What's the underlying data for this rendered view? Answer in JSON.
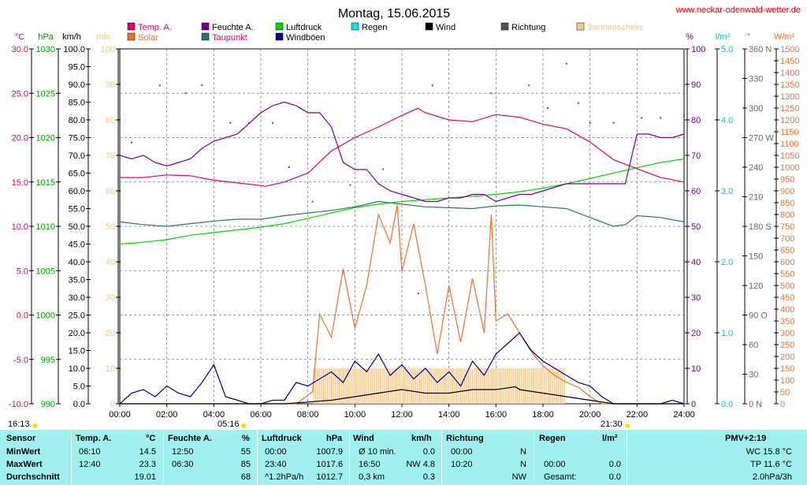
{
  "header": {
    "title": "Montag, 15.06.2015",
    "website": "www.neckar-odenwald-wetter.de"
  },
  "colors": {
    "temp": "#e0006e",
    "humidity": "#7a0090",
    "pressure": "#00d800",
    "rain": "#00e8e8",
    "wind": "#000000",
    "direction": "#555555",
    "sunshine": "#f5c884",
    "solar": "#f07030",
    "dewpoint": "#307070",
    "gust": "#000090",
    "degC_axis": "#e0006e",
    "hpa_axis": "#00a000",
    "min_axis": "#f5c884",
    "rain_axis": "#00c8c8",
    "wm2_axis": "#f07030",
    "stats_bg": "#9ff0ee"
  },
  "legend": [
    {
      "key": "temp",
      "label": "Temp. A."
    },
    {
      "key": "humidity",
      "label": "Feuchte A."
    },
    {
      "key": "pressure",
      "label": "Luftdruck"
    },
    {
      "key": "rain",
      "label": "Regen"
    },
    {
      "key": "wind",
      "label": "Wind"
    },
    {
      "key": "direction",
      "label": "Richtung"
    },
    {
      "key": "sunshine",
      "label": "Sonnenschein"
    },
    {
      "key": "solar",
      "label": "Solar"
    },
    {
      "key": "dewpoint",
      "label": "Taupunkt"
    },
    {
      "key": "gust",
      "label": "Windböen"
    }
  ],
  "axis_units": {
    "degC": "°C",
    "hpa": "hPa",
    "kmh": "km/h",
    "min": "min",
    "pct": "%",
    "rain": "l/m²",
    "deg": "°",
    "wm2": "W/m²"
  },
  "sun": {
    "sunrise": "05:16",
    "sunset": "21:30",
    "left": "16:13"
  },
  "chart_data": {
    "type": "line",
    "x_unit": "hours",
    "xlim": [
      0,
      24
    ],
    "x_ticks": [
      "00:00",
      "02:00",
      "04:00",
      "06:00",
      "08:00",
      "10:00",
      "12:00",
      "14:00",
      "16:00",
      "18:00",
      "20:00",
      "22:00",
      "24:00"
    ],
    "axes": {
      "degC": {
        "range": [
          -10,
          30
        ],
        "ticks": [
          "30.0",
          "25.0",
          "20.0",
          "15.0",
          "10.0",
          "5.0",
          "0.0",
          "-5.0",
          "-10.0"
        ]
      },
      "hpa": {
        "range": [
          990,
          1030
        ],
        "ticks": [
          "1030",
          "1025",
          "1020",
          "1015",
          "1010",
          "1005",
          "1000",
          "995",
          "990"
        ]
      },
      "kmh": {
        "range": [
          0,
          100
        ],
        "ticks": [
          "100.0",
          "95.0",
          "90.0",
          "85.0",
          "80.0",
          "75.0",
          "70.0",
          "65.0",
          "60.0",
          "55.0",
          "50.0",
          "45.0",
          "40.0",
          "35.0",
          "30.0",
          "25.0",
          "20.0",
          "15.0",
          "10.0",
          "5.0",
          "0.0"
        ]
      },
      "min": {
        "range": [
          0,
          100
        ],
        "ticks": [
          "100",
          "90",
          "80",
          "70",
          "60",
          "50",
          "40",
          "30",
          "20",
          "10",
          "0"
        ]
      },
      "pct": {
        "range": [
          0,
          100
        ],
        "ticks": [
          "100",
          "90",
          "80",
          "70",
          "60",
          "50",
          "40",
          "30",
          "20",
          "10",
          "0"
        ]
      },
      "rain": {
        "range": [
          0,
          5
        ],
        "ticks": [
          "5.0",
          "4.0",
          "3.0",
          "2.0",
          "1.0",
          "0.0"
        ]
      },
      "deg": {
        "range": [
          0,
          360
        ],
        "ticks": [
          "360 N",
          "330",
          "300",
          "270 W",
          "240",
          "210",
          "180 S",
          "150",
          "120",
          "90 O",
          "60",
          "30",
          "0 N"
        ]
      },
      "wm2": {
        "range": [
          0,
          1500
        ],
        "ticks": [
          "1500",
          "1450",
          "1400",
          "1350",
          "1300",
          "1250",
          "1200",
          "1150",
          "1100",
          "1050",
          "1000",
          "950",
          "900",
          "850",
          "800",
          "750",
          "700",
          "650",
          "600",
          "550",
          "500",
          "450",
          "400",
          "350",
          "300",
          "250",
          "200",
          "150",
          "100",
          "50",
          "0"
        ]
      }
    },
    "series": [
      {
        "name": "Temp. A.",
        "key": "temp",
        "axis": "degC",
        "x": [
          0,
          1,
          2,
          3,
          4,
          5,
          6,
          6.17,
          7,
          8,
          9,
          10,
          11,
          12,
          12.67,
          13,
          14,
          15,
          16,
          17,
          18,
          19,
          20,
          21,
          22,
          23,
          24
        ],
        "y": [
          15.5,
          15.5,
          15.8,
          15.7,
          15.2,
          14.9,
          14.6,
          14.5,
          15.0,
          16.0,
          18.5,
          20.0,
          21.2,
          22.5,
          23.3,
          22.8,
          22.0,
          21.8,
          22.6,
          22.3,
          21.5,
          21.0,
          19.5,
          17.5,
          16.5,
          15.5,
          15.0
        ]
      },
      {
        "name": "Feuchte A.",
        "key": "humidity",
        "axis": "pct",
        "x": [
          0,
          0.5,
          1,
          1.5,
          2,
          2.5,
          3,
          3.5,
          4,
          4.5,
          5,
          5.5,
          6,
          6.5,
          7,
          7.5,
          8,
          8.5,
          9,
          9.5,
          10,
          10.5,
          11,
          11.5,
          12,
          12.5,
          13,
          13.5,
          14,
          14.5,
          15,
          15.5,
          16,
          16.5,
          17,
          17.5,
          18,
          18.5,
          19,
          19.5,
          20,
          20.5,
          21,
          21.5,
          22,
          22.5,
          23,
          23.5,
          24
        ],
        "y": [
          70,
          69,
          70,
          68,
          67,
          68,
          69,
          72,
          74,
          75,
          76,
          79,
          82,
          84,
          85,
          84,
          82,
          82,
          78,
          68,
          66,
          66,
          62,
          60,
          59,
          58,
          57,
          57,
          58,
          58,
          59,
          59,
          57,
          58,
          59,
          59,
          60,
          61,
          62,
          62,
          62,
          62,
          62,
          62,
          76,
          76,
          75,
          75,
          76
        ]
      },
      {
        "name": "Luftdruck",
        "key": "pressure",
        "axis": "hpa",
        "x": [
          0,
          1,
          2,
          3,
          4,
          5,
          6,
          7,
          8,
          9,
          10,
          11,
          12,
          13,
          14,
          15,
          16,
          17,
          18,
          19,
          20,
          21,
          22,
          23,
          24
        ],
        "y": [
          1008.0,
          1008.2,
          1008.5,
          1009.0,
          1009.3,
          1009.6,
          1009.9,
          1010.3,
          1010.9,
          1011.5,
          1012.1,
          1012.5,
          1012.8,
          1013.0,
          1013.2,
          1013.4,
          1013.6,
          1013.9,
          1014.3,
          1014.8,
          1015.4,
          1016.0,
          1016.6,
          1017.2,
          1017.6
        ]
      },
      {
        "name": "Taupunkt",
        "key": "dewpoint",
        "axis": "degC",
        "x": [
          0,
          1,
          2,
          3,
          4,
          5,
          6,
          7,
          8,
          9,
          10,
          11,
          12,
          13,
          14,
          15,
          16,
          17,
          18,
          19,
          20,
          21,
          21.5,
          22,
          23,
          24
        ],
        "y": [
          10.5,
          10.2,
          10.0,
          10.3,
          10.6,
          10.8,
          10.8,
          11.2,
          11.5,
          11.8,
          12.2,
          12.8,
          12.5,
          12.2,
          12.1,
          12.0,
          12.3,
          12.4,
          12.2,
          12.0,
          11.0,
          10.0,
          10.2,
          11.2,
          11.0,
          10.5
        ]
      },
      {
        "name": "Solar",
        "key": "solar",
        "axis": "wm2",
        "x": [
          0,
          7.5,
          8.2,
          8.5,
          9,
          9.5,
          10,
          10.5,
          11,
          11.5,
          11.8,
          12,
          12.5,
          13,
          13.5,
          14,
          14.5,
          15,
          15.5,
          15.8,
          16,
          16.5,
          17,
          17.5,
          18,
          18.5,
          19,
          19.5,
          20,
          20.5,
          24
        ],
        "y": [
          0,
          0,
          50,
          380,
          280,
          570,
          320,
          500,
          800,
          680,
          840,
          560,
          760,
          500,
          210,
          500,
          260,
          530,
          300,
          800,
          350,
          380,
          300,
          220,
          160,
          120,
          90,
          70,
          30,
          0,
          0
        ]
      },
      {
        "name": "Windböen",
        "key": "gust",
        "axis": "kmh",
        "x": [
          0,
          0.5,
          1,
          1.5,
          2,
          2.5,
          3,
          3.5,
          4,
          4.5,
          5,
          5.5,
          6,
          6.5,
          7,
          7.5,
          8,
          8.5,
          9,
          9.5,
          10,
          10.5,
          11,
          11.5,
          12,
          12.5,
          13,
          13.5,
          14,
          14.5,
          15,
          15.5,
          16,
          16.5,
          17,
          17.5,
          18,
          18.5,
          19,
          19.5,
          20,
          20.5,
          21,
          21.5,
          22,
          22.5,
          23,
          23.5,
          24
        ],
        "y": [
          0,
          3,
          4,
          2,
          5,
          3,
          2,
          6,
          11,
          2,
          1,
          0,
          0,
          1,
          1,
          6,
          5,
          7,
          9,
          6,
          12,
          9,
          14,
          8,
          11,
          7,
          10,
          6,
          9,
          5,
          12,
          8,
          14,
          17,
          20,
          15,
          12,
          10,
          8,
          6,
          5,
          2,
          0,
          0,
          0,
          0,
          0,
          1,
          0
        ]
      },
      {
        "name": "Wind",
        "key": "wind",
        "axis": "kmh",
        "x": [
          0,
          1,
          2,
          3,
          4,
          5,
          6,
          7,
          8,
          9,
          10,
          11,
          12,
          13,
          14,
          15,
          16,
          16.83,
          17,
          18,
          19,
          20,
          21,
          22,
          23,
          24
        ],
        "y": [
          0,
          0,
          0,
          0,
          0,
          0,
          0,
          0,
          0.5,
          1,
          2,
          3,
          4,
          3,
          3,
          4,
          4,
          4.8,
          4,
          3,
          2,
          1,
          0,
          0,
          0,
          0
        ]
      }
    ],
    "sunshine_period": {
      "start": 8.25,
      "end": 18.92,
      "value": 10
    },
    "direction_points": [
      {
        "x": 0.5,
        "y": 265
      },
      {
        "x": 1.7,
        "y": 323
      },
      {
        "x": 2.8,
        "y": 315
      },
      {
        "x": 3.5,
        "y": 323
      },
      {
        "x": 4.7,
        "y": 285
      },
      {
        "x": 5.5,
        "y": 285
      },
      {
        "x": 6.5,
        "y": 285
      },
      {
        "x": 7.2,
        "y": 240
      },
      {
        "x": 8.2,
        "y": 205
      },
      {
        "x": 9.8,
        "y": 222
      },
      {
        "x": 11.2,
        "y": 238
      },
      {
        "x": 12.7,
        "y": 112
      },
      {
        "x": 13.3,
        "y": 323
      },
      {
        "x": 15.8,
        "y": 315
      },
      {
        "x": 17.4,
        "y": 323
      },
      {
        "x": 18.2,
        "y": 300
      },
      {
        "x": 19,
        "y": 345
      },
      {
        "x": 19.5,
        "y": 305
      },
      {
        "x": 20,
        "y": 285
      },
      {
        "x": 21,
        "y": 285
      },
      {
        "x": 22.2,
        "y": 290
      },
      {
        "x": 23,
        "y": 290
      },
      {
        "x": 24,
        "y": 292
      }
    ]
  },
  "stats": {
    "col_headers": {
      "sensor": "Sensor",
      "temp": "Temp. A.",
      "temp_unit": "°C",
      "hum": "Feuchte A.",
      "hum_unit": "%",
      "press": "Luftdruck",
      "press_unit": "hPa",
      "wind": "Wind",
      "wind_unit": "km/h",
      "dir": "Richtung",
      "rain": "Regen",
      "rain_unit": "l/m²",
      "pmv": "PMV+2:19"
    },
    "rows": [
      {
        "label": "MinWert",
        "temp_t": "06:10",
        "temp_v": "14.5",
        "hum_t": "12:50",
        "hum_v": "55",
        "press_t": "00:00",
        "press_v": "1007.9",
        "wind_a": "Ø 10 min.",
        "wind_v": "0.0",
        "dir_t": "00:00",
        "dir_v": "N",
        "rain_t": "",
        "rain_v": "",
        "extra": "WC 15.8 °C"
      },
      {
        "label": "MaxWert",
        "temp_t": "12:40",
        "temp_v": "23.3",
        "hum_t": "06:30",
        "hum_v": "85",
        "press_t": "23:40",
        "press_v": "1017.6",
        "wind_a": "16:50",
        "wind_v": "NW 4.8",
        "dir_t": "10:20",
        "dir_v": "N",
        "rain_t": "00:00",
        "rain_v": "0.0",
        "extra": "TP 11.6 °C"
      },
      {
        "label": "Durchschnitt",
        "temp_t": "",
        "temp_v": "19.01",
        "hum_t": "",
        "hum_v": "68",
        "press_t": "^1.2hPa/h",
        "press_v": "1012.7",
        "wind_a": "0,3 km",
        "wind_v": "0.3",
        "dir_t": "",
        "dir_v": "NW",
        "rain_t": "Gesamt:",
        "rain_v": "0.0",
        "extra": "2.0hPa/3h"
      }
    ]
  }
}
